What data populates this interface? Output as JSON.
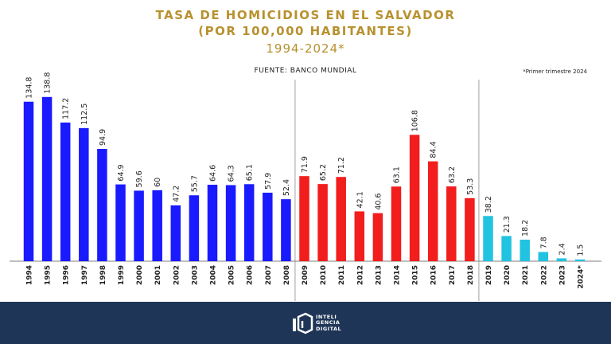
{
  "header": {
    "title_line1": "TASA DE HOMICIDIOS EN EL SALVADOR",
    "title_line2": "(POR 100,000 HABITANTES)",
    "title_line3": "1994-2024*",
    "source": "FUENTE: BANCO MUNDIAL",
    "note": "*Primer trimestre 2024"
  },
  "footer": {
    "logo_line1": "INTELI",
    "logo_line2": "GENCIA",
    "logo_line3": "DIGITAL"
  },
  "colors": {
    "title": "#b8912f",
    "blue": "#1a1aff",
    "red": "#f21d1d",
    "cyan": "#22c3e0",
    "footer": "#1e3557"
  },
  "chart_data": {
    "type": "bar",
    "title": "TASA DE HOMICIDIOS EN EL SALVADOR (POR 100,000 HABITANTES) 1994-2024*",
    "xlabel": "",
    "ylabel": "",
    "ylim": [
      0,
      140
    ],
    "grid": false,
    "categories": [
      "1994",
      "1995",
      "1996",
      "1997",
      "1998",
      "1999",
      "2000",
      "2001",
      "2002",
      "2003",
      "2004",
      "2005",
      "2006",
      "2007",
      "2008",
      "2009",
      "2010",
      "2011",
      "2012",
      "2013",
      "2014",
      "2015",
      "2016",
      "2017",
      "2018",
      "2019",
      "2020",
      "2021",
      "2022",
      "2023",
      "2024*"
    ],
    "groups": [
      {
        "color": "#1a1aff",
        "categories": [
          "1994",
          "1995",
          "1996",
          "1997",
          "1998",
          "1999",
          "2000",
          "2001",
          "2002",
          "2003",
          "2004",
          "2005",
          "2006",
          "2007",
          "2008"
        ],
        "values": [
          134.8,
          138.8,
          117.2,
          112.5,
          94.9,
          64.9,
          59.6,
          60,
          47.2,
          55.7,
          64.6,
          64.3,
          65.1,
          57.9,
          52.4
        ]
      },
      {
        "color": "#f21d1d",
        "categories": [
          "2009",
          "2010",
          "2011",
          "2012",
          "2013",
          "2014",
          "2015",
          "2016",
          "2017",
          "2018"
        ],
        "values": [
          71.9,
          65.2,
          71.2,
          42.1,
          40.6,
          63.1,
          106.8,
          84.4,
          63.2,
          53.3
        ]
      },
      {
        "color": "#22c3e0",
        "categories": [
          "2019",
          "2020",
          "2021",
          "2022",
          "2023",
          "2024*"
        ],
        "values": [
          38.2,
          21.3,
          18.2,
          7.8,
          2.4,
          1.5
        ]
      }
    ]
  }
}
